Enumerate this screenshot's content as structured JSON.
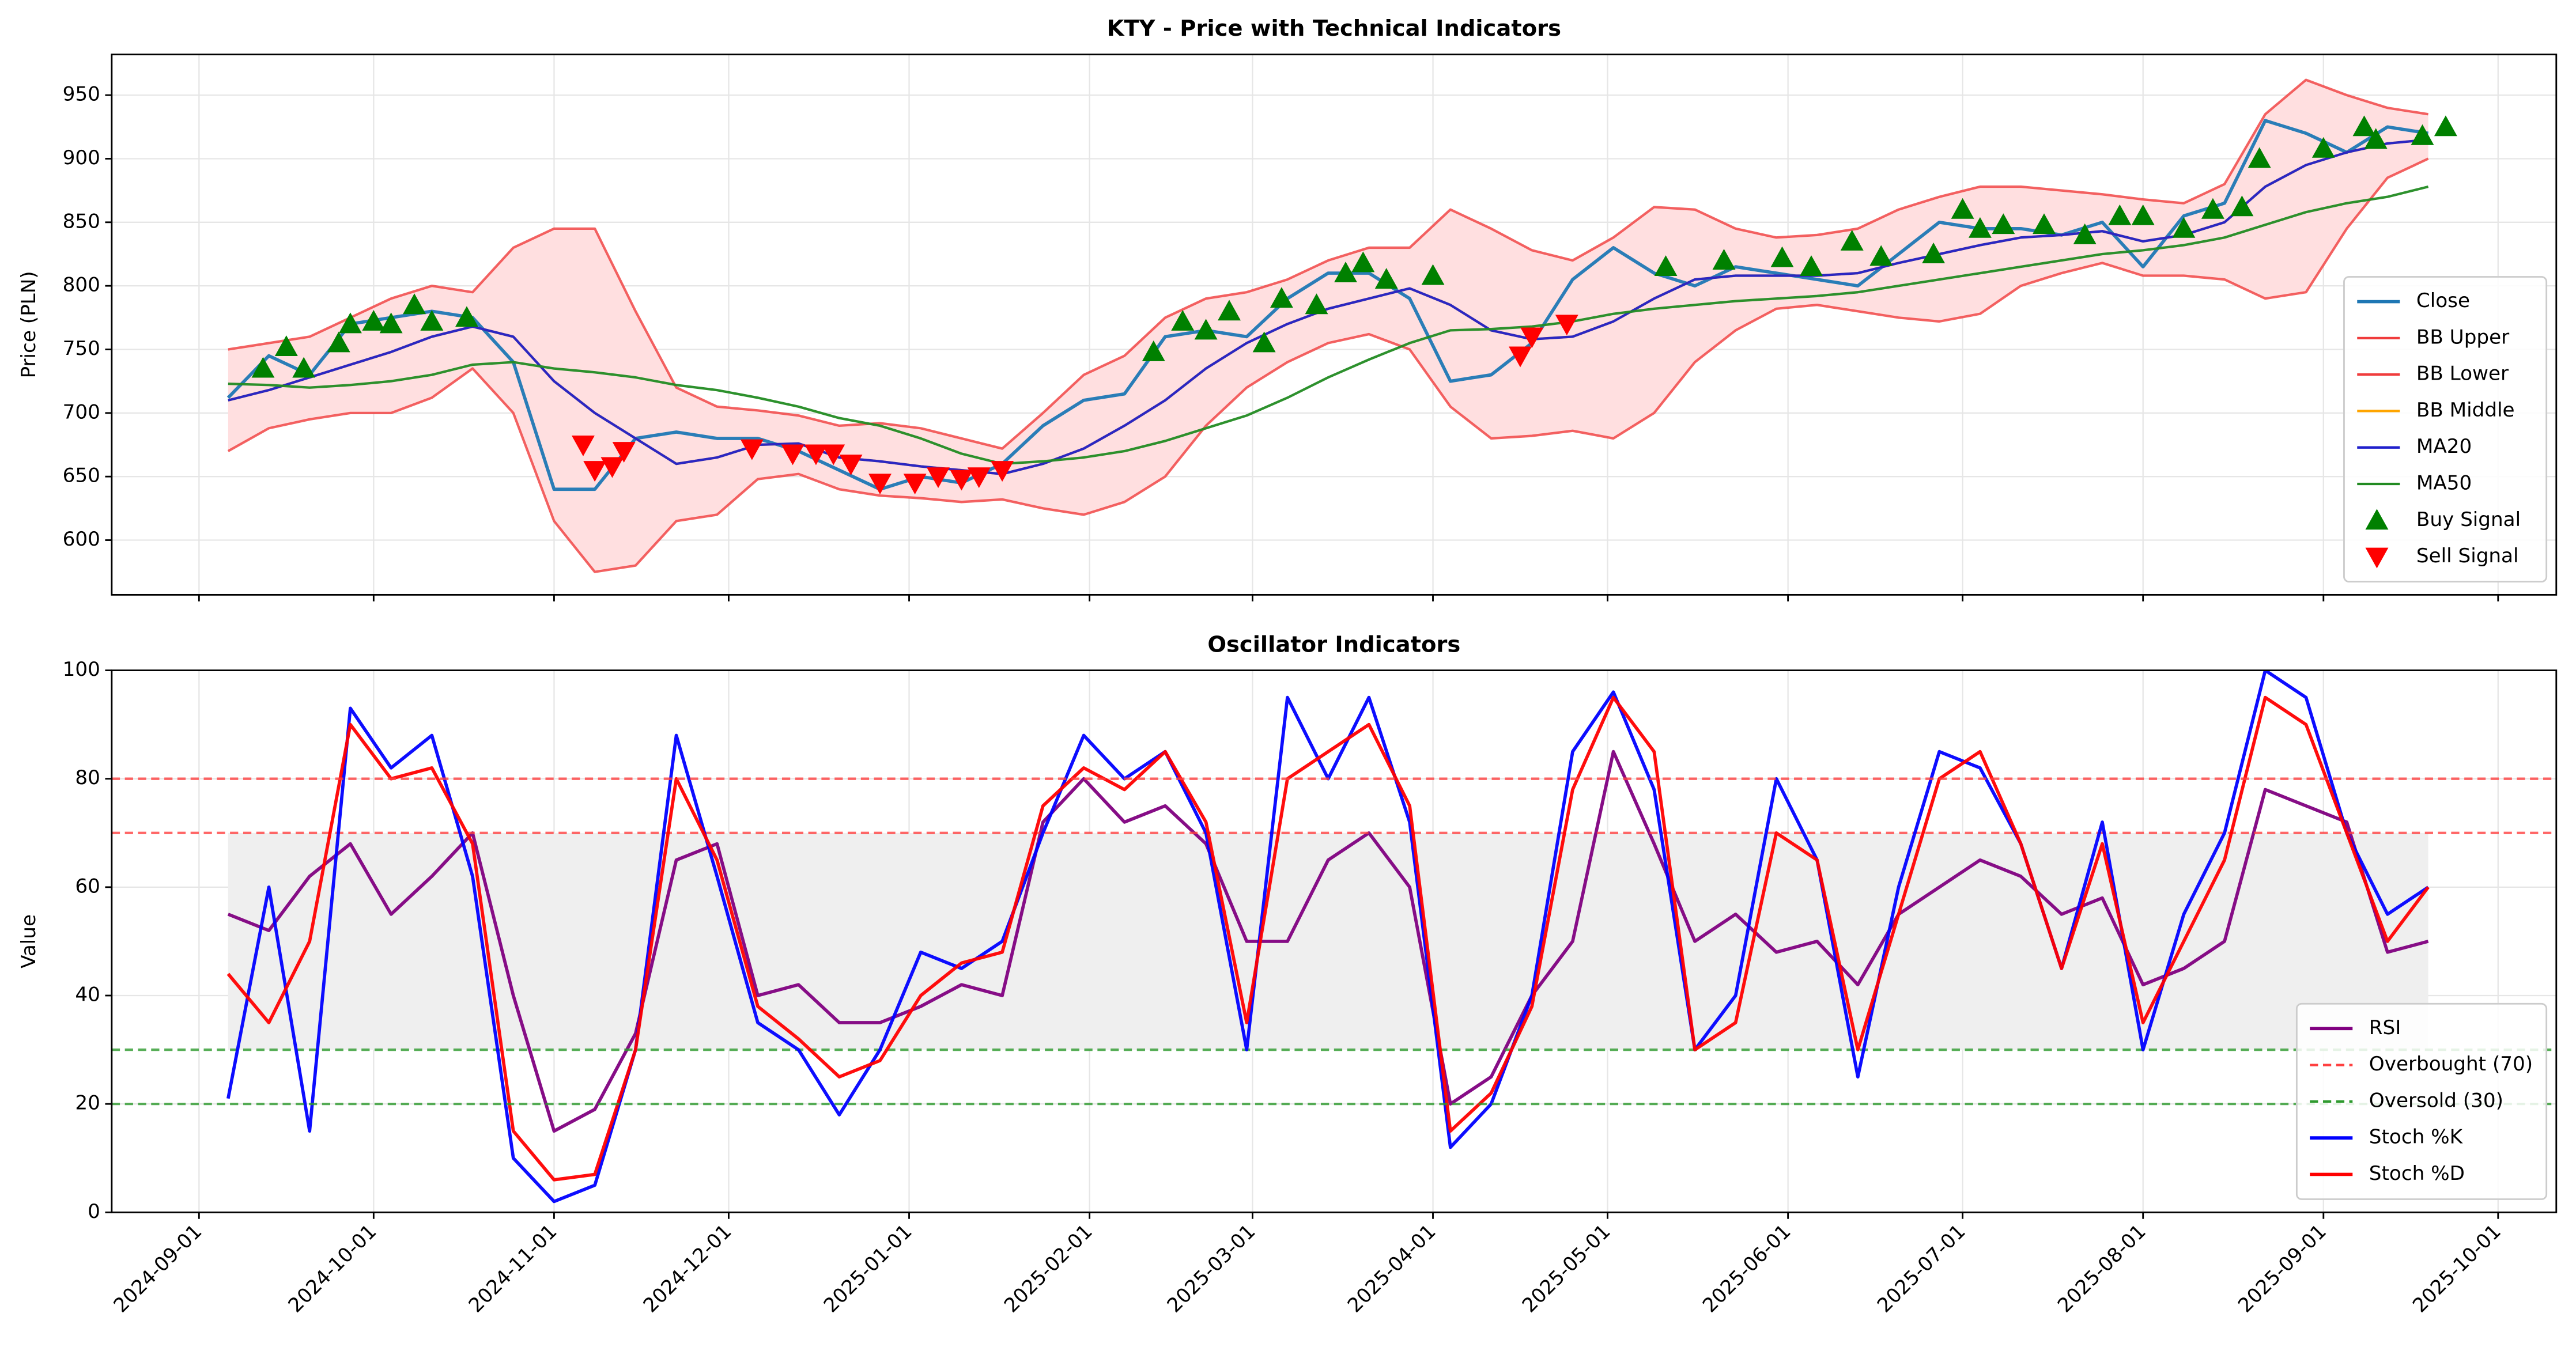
{
  "chart_data": [
    {
      "type": "line",
      "title": "KTY - Price with Technical Indicators",
      "ylabel": "Price (PLN)",
      "grid": true,
      "legend": "lower right",
      "xlim": [
        "2024-08-17",
        "2025-10-11"
      ],
      "ylim": [
        557,
        982
      ],
      "yticks": [
        600,
        650,
        700,
        750,
        800,
        850,
        900,
        950
      ],
      "x": [
        "2024-09-06",
        "2024-09-13",
        "2024-09-20",
        "2024-09-27",
        "2024-10-04",
        "2024-10-11",
        "2024-10-18",
        "2024-10-25",
        "2024-11-01",
        "2024-11-08",
        "2024-11-15",
        "2024-11-22",
        "2024-11-29",
        "2024-12-06",
        "2024-12-13",
        "2024-12-20",
        "2024-12-27",
        "2025-01-03",
        "2025-01-10",
        "2025-01-17",
        "2025-01-24",
        "2025-01-31",
        "2025-02-07",
        "2025-02-14",
        "2025-02-21",
        "2025-02-28",
        "2025-03-07",
        "2025-03-14",
        "2025-03-21",
        "2025-03-28",
        "2025-04-04",
        "2025-04-11",
        "2025-04-18",
        "2025-04-25",
        "2025-05-02",
        "2025-05-09",
        "2025-05-16",
        "2025-05-23",
        "2025-05-30",
        "2025-06-06",
        "2025-06-13",
        "2025-06-20",
        "2025-06-27",
        "2025-07-04",
        "2025-07-11",
        "2025-07-18",
        "2025-07-25",
        "2025-08-01",
        "2025-08-08",
        "2025-08-15",
        "2025-08-22",
        "2025-08-29",
        "2025-09-05",
        "2025-09-12",
        "2025-09-19"
      ],
      "series": [
        {
          "name": "Close",
          "color": "#1f77b4",
          "width": 2,
          "values": [
            712,
            745,
            730,
            770,
            775,
            780,
            775,
            740,
            640,
            640,
            680,
            685,
            680,
            680,
            670,
            655,
            640,
            650,
            645,
            660,
            690,
            710,
            715,
            760,
            765,
            760,
            790,
            810,
            810,
            790,
            725,
            730,
            755,
            805,
            830,
            810,
            800,
            815,
            810,
            805,
            800,
            825,
            850,
            845,
            845,
            840,
            850,
            815,
            855,
            865,
            930,
            920,
            905,
            925,
            920
          ]
        },
        {
          "name": "BB Upper",
          "color": "#f03c3c",
          "width": 1.5,
          "fill": "#ffdfe0",
          "values": [
            750,
            755,
            760,
            775,
            790,
            800,
            795,
            830,
            845,
            845,
            780,
            720,
            705,
            702,
            698,
            690,
            692,
            688,
            680,
            672,
            700,
            730,
            745,
            775,
            790,
            795,
            805,
            820,
            830,
            830,
            860,
            845,
            828,
            820,
            838,
            862,
            860,
            845,
            838,
            840,
            845,
            860,
            870,
            878,
            878,
            875,
            872,
            868,
            865,
            880,
            935,
            962,
            950,
            940,
            935
          ]
        },
        {
          "name": "BB Lower",
          "color": "#f03c3c",
          "width": 1.5,
          "values": [
            670,
            688,
            695,
            700,
            700,
            712,
            735,
            700,
            615,
            575,
            580,
            615,
            620,
            648,
            652,
            640,
            635,
            633,
            630,
            632,
            625,
            620,
            630,
            650,
            690,
            720,
            740,
            755,
            762,
            750,
            705,
            680,
            682,
            686,
            680,
            700,
            740,
            765,
            782,
            785,
            780,
            775,
            772,
            778,
            800,
            810,
            818,
            808,
            808,
            805,
            790,
            795,
            845,
            885,
            900
          ]
        },
        {
          "name": "BB Middle",
          "color": "#ffa500",
          "width": 1.5,
          "values": [
            710,
            718,
            728,
            738,
            748,
            760,
            768,
            760,
            725,
            700,
            680,
            660,
            665,
            675,
            676,
            665,
            662,
            658,
            655,
            652,
            660,
            672,
            690,
            710,
            735,
            755,
            770,
            782,
            790,
            798,
            785,
            765,
            758,
            760,
            772,
            790,
            805,
            808,
            808,
            808,
            810,
            818,
            825,
            832,
            838,
            840,
            843,
            835,
            840,
            850,
            878,
            895,
            905,
            912,
            915
          ]
        },
        {
          "name": "MA20",
          "color": "#2020cc",
          "width": 1.5,
          "values": [
            710,
            718,
            728,
            738,
            748,
            760,
            768,
            760,
            725,
            700,
            680,
            660,
            665,
            675,
            676,
            665,
            662,
            658,
            655,
            652,
            660,
            672,
            690,
            710,
            735,
            755,
            770,
            782,
            790,
            798,
            785,
            765,
            758,
            760,
            772,
            790,
            805,
            808,
            808,
            808,
            810,
            818,
            825,
            832,
            838,
            840,
            843,
            835,
            840,
            850,
            878,
            895,
            905,
            912,
            915
          ]
        },
        {
          "name": "MA50",
          "color": "#228b22",
          "width": 1.5,
          "values": [
            723,
            722,
            720,
            722,
            725,
            730,
            738,
            740,
            735,
            732,
            728,
            722,
            718,
            712,
            705,
            696,
            690,
            680,
            668,
            660,
            662,
            665,
            670,
            678,
            688,
            698,
            712,
            728,
            742,
            755,
            765,
            766,
            768,
            772,
            778,
            782,
            785,
            788,
            790,
            792,
            795,
            800,
            805,
            810,
            815,
            820,
            825,
            828,
            832,
            838,
            848,
            858,
            865,
            870,
            878
          ]
        },
        {
          "name": "Buy Signal",
          "color": "#008000",
          "marker": "up",
          "x": [
            "2024-09-12",
            "2024-09-16",
            "2024-09-19",
            "2024-09-25",
            "2024-09-27",
            "2024-10-01",
            "2024-10-04",
            "2024-10-08",
            "2024-10-11",
            "2024-10-17",
            "2025-02-12",
            "2025-02-17",
            "2025-02-21",
            "2025-02-25",
            "2025-03-03",
            "2025-03-06",
            "2025-03-12",
            "2025-03-17",
            "2025-03-20",
            "2025-03-24",
            "2025-04-01",
            "2025-05-11",
            "2025-05-21",
            "2025-05-31",
            "2025-06-05",
            "2025-06-12",
            "2025-06-17",
            "2025-06-26",
            "2025-07-01",
            "2025-07-04",
            "2025-07-08",
            "2025-07-15",
            "2025-07-22",
            "2025-07-28",
            "2025-08-01",
            "2025-08-08",
            "2025-08-13",
            "2025-08-18",
            "2025-08-21",
            "2025-09-01",
            "2025-09-08",
            "2025-09-10",
            "2025-09-18",
            "2025-09-22"
          ],
          "values": [
            735,
            752,
            735,
            755,
            770,
            772,
            770,
            785,
            772,
            775,
            748,
            772,
            765,
            780,
            755,
            790,
            785,
            810,
            818,
            805,
            808,
            815,
            820,
            822,
            815,
            835,
            823,
            825,
            860,
            845,
            848,
            848,
            840,
            855,
            855,
            845,
            860,
            862,
            900,
            908,
            925,
            915,
            918,
            925
          ]
        },
        {
          "name": "Sell Signal",
          "color": "#ff0000",
          "marker": "down",
          "x": [
            "2024-11-06",
            "2024-11-08",
            "2024-11-11",
            "2024-11-13",
            "2024-12-05",
            "2024-12-12",
            "2024-12-16",
            "2024-12-19",
            "2024-12-22",
            "2024-12-27",
            "2025-01-02",
            "2025-01-06",
            "2025-01-10",
            "2025-01-13",
            "2025-01-17",
            "2025-04-16",
            "2025-04-18",
            "2025-04-24"
          ],
          "values": [
            675,
            655,
            658,
            670,
            672,
            668,
            668,
            668,
            660,
            645,
            645,
            650,
            648,
            650,
            655,
            745,
            760,
            770
          ]
        }
      ]
    },
    {
      "type": "line",
      "title": "Oscillator Indicators",
      "ylabel": "Value",
      "grid": true,
      "legend": "lower right",
      "xlim": [
        "2024-08-17",
        "2025-10-11"
      ],
      "ylim": [
        0,
        100
      ],
      "yticks": [
        0,
        20,
        40,
        60,
        80,
        100
      ],
      "xticks": [
        "2024-09-01",
        "2024-10-01",
        "2024-11-01",
        "2024-12-01",
        "2025-01-01",
        "2025-02-01",
        "2025-03-01",
        "2025-04-01",
        "2025-05-01",
        "2025-06-01",
        "2025-07-01",
        "2025-08-01",
        "2025-09-01",
        "2025-10-01"
      ],
      "x": [
        "2024-09-06",
        "2024-09-13",
        "2024-09-20",
        "2024-09-27",
        "2024-10-04",
        "2024-10-11",
        "2024-10-18",
        "2024-10-25",
        "2024-11-01",
        "2024-11-08",
        "2024-11-15",
        "2024-11-22",
        "2024-11-29",
        "2024-12-06",
        "2024-12-13",
        "2024-12-20",
        "2024-12-27",
        "2025-01-03",
        "2025-01-10",
        "2025-01-17",
        "2025-01-24",
        "2025-01-31",
        "2025-02-07",
        "2025-02-14",
        "2025-02-21",
        "2025-02-28",
        "2025-03-07",
        "2025-03-14",
        "2025-03-21",
        "2025-03-28",
        "2025-04-04",
        "2025-04-11",
        "2025-04-18",
        "2025-04-25",
        "2025-05-02",
        "2025-05-09",
        "2025-05-16",
        "2025-05-23",
        "2025-05-30",
        "2025-06-06",
        "2025-06-13",
        "2025-06-20",
        "2025-06-27",
        "2025-07-04",
        "2025-07-11",
        "2025-07-18",
        "2025-07-25",
        "2025-08-01",
        "2025-08-08",
        "2025-08-15",
        "2025-08-22",
        "2025-08-29",
        "2025-09-05",
        "2025-09-12",
        "2025-09-19"
      ],
      "series": [
        {
          "name": "RSI",
          "color": "#800080",
          "width": 2,
          "values": [
            55,
            52,
            62,
            68,
            55,
            62,
            70,
            40,
            15,
            19,
            33,
            65,
            68,
            40,
            42,
            35,
            35,
            38,
            42,
            40,
            72,
            80,
            72,
            75,
            68,
            50,
            50,
            65,
            70,
            60,
            20,
            25,
            40,
            50,
            85,
            68,
            50,
            55,
            48,
            50,
            42,
            55,
            60,
            65,
            62,
            55,
            58,
            42,
            45,
            50,
            78,
            75,
            72,
            48,
            50
          ]
        },
        {
          "name": "Overbought (70)",
          "color": "#ff4040",
          "hline": 70,
          "shade": "#efefef"
        },
        {
          "name": "Oversold (30)",
          "color": "#2e9a2e",
          "hline": 30
        },
        {
          "name": "Stoch %K",
          "color": "#0000ff",
          "width": 2,
          "values": [
            21,
            60,
            15,
            93,
            82,
            88,
            62,
            10,
            2,
            5,
            30,
            88,
            62,
            35,
            30,
            18,
            30,
            48,
            45,
            50,
            70,
            88,
            80,
            85,
            70,
            30,
            95,
            80,
            95,
            72,
            12,
            20,
            40,
            85,
            96,
            78,
            30,
            40,
            80,
            65,
            25,
            60,
            85,
            82,
            68,
            45,
            72,
            30,
            55,
            70,
            100,
            95,
            70,
            55,
            60
          ]
        },
        {
          "name": "Stoch %D",
          "color": "#ff0000",
          "width": 2,
          "values": [
            44,
            35,
            50,
            90,
            80,
            82,
            68,
            15,
            6,
            7,
            30,
            80,
            65,
            38,
            32,
            25,
            28,
            40,
            46,
            48,
            75,
            82,
            78,
            85,
            72,
            35,
            80,
            85,
            90,
            75,
            15,
            22,
            38,
            78,
            95,
            85,
            30,
            35,
            70,
            65,
            30,
            55,
            80,
            85,
            68,
            45,
            68,
            35,
            50,
            65,
            95,
            90,
            70,
            50,
            60
          ]
        },
        {
          "color": "#ff4040",
          "hline": 80
        },
        {
          "color": "#2e9a2e",
          "hline": 20
        }
      ]
    }
  ]
}
